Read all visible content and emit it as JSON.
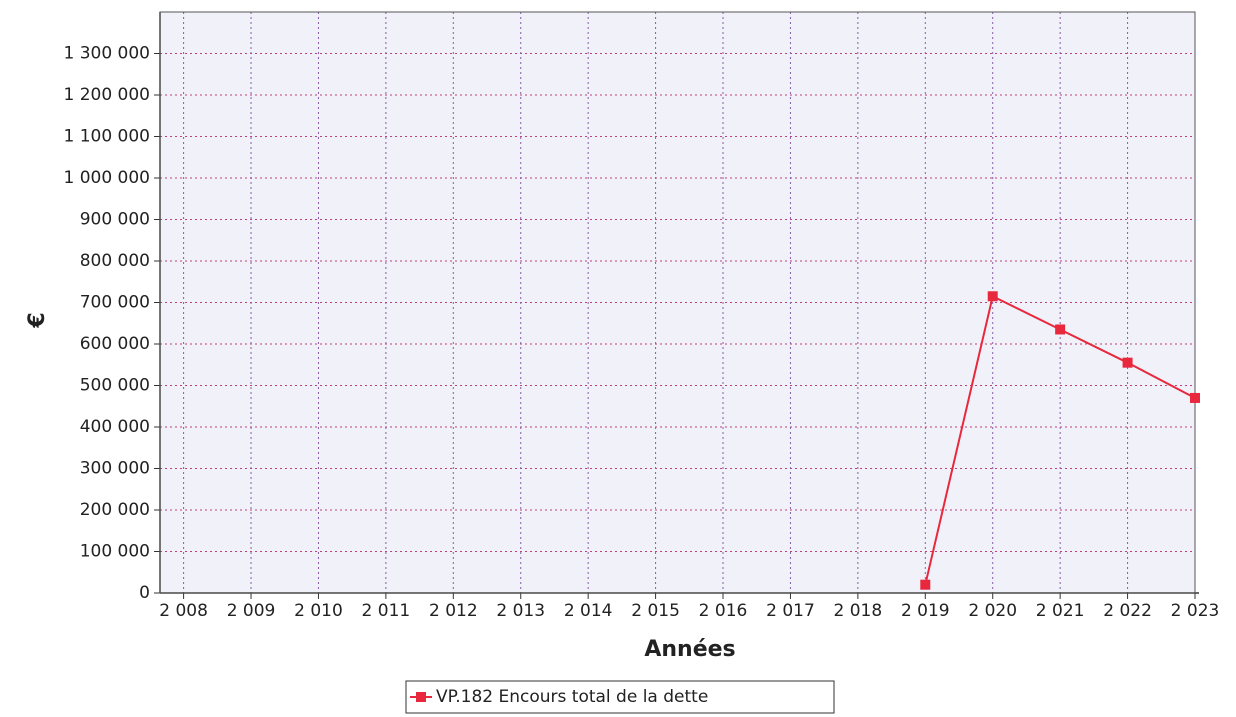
{
  "chart_data": {
    "type": "line",
    "x_label": "Années",
    "y_label": "€",
    "x": [
      2019,
      2020,
      2021,
      2022,
      2023
    ],
    "series": [
      {
        "name": "VP.182 Encours total de la dette",
        "color": "#e8283c",
        "values": [
          20000,
          715000,
          635000,
          555000,
          470000
        ]
      }
    ],
    "xlim": [
      2007.65,
      2023
    ],
    "xticks": [
      {
        "value": 2008,
        "label": "2 008"
      },
      {
        "value": 2009,
        "label": "2 009"
      },
      {
        "value": 2010,
        "label": "2 010"
      },
      {
        "value": 2011,
        "label": "2 011"
      },
      {
        "value": 2012,
        "label": "2 012"
      },
      {
        "value": 2013,
        "label": "2 013"
      },
      {
        "value": 2014,
        "label": "2 014"
      },
      {
        "value": 2015,
        "label": "2 015"
      },
      {
        "value": 2016,
        "label": "2 016"
      },
      {
        "value": 2017,
        "label": "2 017"
      },
      {
        "value": 2018,
        "label": "2 018"
      },
      {
        "value": 2019,
        "label": "2 019"
      },
      {
        "value": 2020,
        "label": "2 020"
      },
      {
        "value": 2021,
        "label": "2 021"
      },
      {
        "value": 2022,
        "label": "2 022"
      },
      {
        "value": 2023,
        "label": "2 023"
      }
    ],
    "ylim": [
      0,
      1400000
    ],
    "yticks": [
      0,
      {
        "value": 100000,
        "label": "100 000"
      },
      {
        "value": 200000,
        "label": "200 000"
      },
      {
        "value": 300000,
        "label": "300 000"
      },
      {
        "value": 400000,
        "label": "400 000"
      },
      {
        "value": 500000,
        "label": "500 000"
      },
      {
        "value": 600000,
        "label": "600 000"
      },
      {
        "value": 700000,
        "label": "700 000"
      },
      {
        "value": 800000,
        "label": "800 000"
      },
      {
        "value": 900000,
        "label": "900 000"
      },
      {
        "value": 1000000,
        "label": "1 000 000"
      },
      {
        "value": 1100000,
        "label": "1 100 000"
      },
      {
        "value": 1200000,
        "label": "1 200 000"
      },
      {
        "value": 1300000,
        "label": "1 300 000"
      }
    ],
    "grid": true,
    "legend": "bottom"
  }
}
